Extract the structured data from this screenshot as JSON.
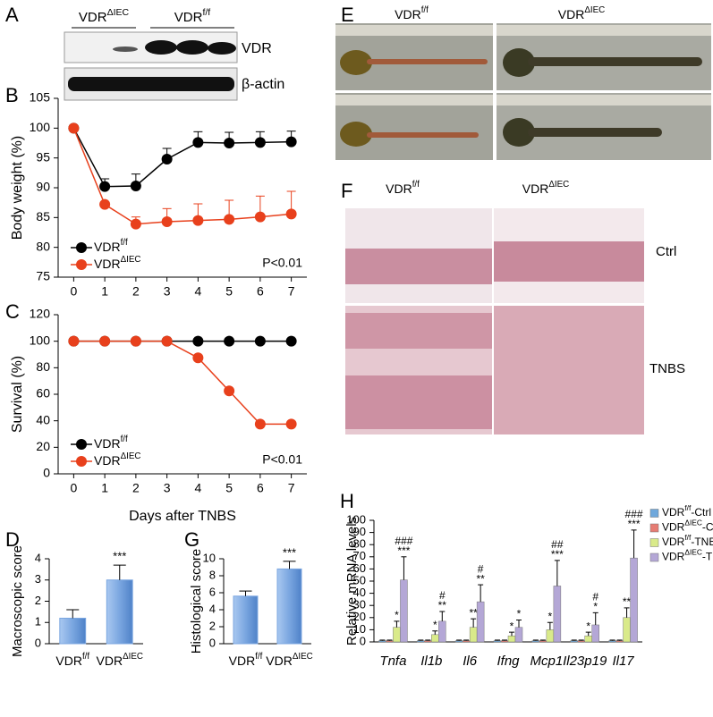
{
  "figure_a": {
    "panel": "A",
    "columns": [
      "VDRΔIEC",
      "VDRf/f"
    ],
    "rows": [
      "VDR",
      "β-actin"
    ]
  },
  "figure_e": {
    "panel": "E",
    "columns": [
      "VDRf/f",
      "VDRΔIEC"
    ]
  },
  "figure_f": {
    "panel": "F",
    "columns": [
      "VDRf/f",
      "VDRΔIEC"
    ],
    "rows": [
      "Ctrl",
      "TNBS"
    ]
  },
  "chart_data": [
    {
      "type": "line",
      "panel": "B",
      "y_label": "Body weight (%)",
      "x": [
        0,
        1,
        2,
        3,
        4,
        5,
        6,
        7
      ],
      "xlim": [
        -0.5,
        7.5
      ],
      "xticks": [
        0,
        1,
        2,
        3,
        4,
        5,
        6,
        7
      ],
      "ylim": [
        75,
        105
      ],
      "yticks": [
        75,
        80,
        85,
        90,
        95,
        100,
        105
      ],
      "legend": "lower left",
      "annotation": "P<0.01",
      "series": [
        {
          "name": "VDRf/f",
          "color": "#000000",
          "values": [
            100,
            90.2,
            90.3,
            94.8,
            97.6,
            97.5,
            97.6,
            97.7
          ],
          "errors": [
            0,
            1.3,
            2,
            1.8,
            1.8,
            1.8,
            1.8,
            1.8
          ]
        },
        {
          "name": "VDRΔIEC",
          "color": "#e8401c",
          "values": [
            100,
            87.2,
            83.9,
            84.3,
            84.5,
            84.7,
            85.1,
            85.6
          ],
          "errors": [
            0,
            0,
            1.2,
            2.2,
            2.8,
            3.2,
            3.5,
            3.8
          ]
        }
      ]
    },
    {
      "type": "line",
      "panel": "C",
      "y_label": "Survival (%)",
      "x_label": "Days after TNBS",
      "x": [
        0,
        1,
        2,
        3,
        4,
        5,
        6,
        7
      ],
      "xlim": [
        -0.5,
        7.5
      ],
      "xticks": [
        0,
        1,
        2,
        3,
        4,
        5,
        6,
        7
      ],
      "ylim": [
        0,
        120
      ],
      "yticks": [
        0,
        20,
        40,
        60,
        80,
        100,
        120
      ],
      "legend": "lower left",
      "annotation": "P<0.01",
      "series": [
        {
          "name": "VDRf/f",
          "color": "#000000",
          "values": [
            100,
            100,
            100,
            100,
            100,
            100,
            100,
            100
          ]
        },
        {
          "name": "VDRΔIEC",
          "color": "#e8401c",
          "values": [
            100,
            100,
            100,
            100,
            87.5,
            62.5,
            37.5,
            37.5
          ]
        }
      ]
    },
    {
      "type": "bar",
      "panel": "D",
      "y_label": "Macroscopic score",
      "color": "#7aa6e0",
      "categories": [
        "VDRf/f",
        "VDRΔIEC"
      ],
      "values": [
        1.2,
        3.0
      ],
      "errors": [
        0.4,
        0.7
      ],
      "annotations": [
        null,
        "***"
      ],
      "ylim": [
        0,
        4
      ],
      "yticks": [
        0,
        1,
        2,
        3,
        4
      ]
    },
    {
      "type": "bar",
      "panel": "G",
      "y_label": "Histological score",
      "color": "#7aa6e0",
      "categories": [
        "VDRf/f",
        "VDRΔIEC"
      ],
      "values": [
        5.6,
        8.8
      ],
      "errors": [
        0.6,
        0.9
      ],
      "annotations": [
        null,
        "***"
      ],
      "ylim": [
        0,
        10
      ],
      "yticks": [
        0,
        2,
        4,
        6,
        8,
        10
      ]
    },
    {
      "type": "grouped_bar",
      "panel": "H",
      "y_label": "Relative mRNA levels",
      "categories": [
        "Tnfa",
        "Il1b",
        "Il6",
        "Ifng",
        "Mcp1",
        "Il23p19",
        "Il17"
      ],
      "ylim": [
        0,
        100
      ],
      "yticks": [
        0,
        10,
        20,
        30,
        40,
        50,
        60,
        70,
        80,
        90,
        100
      ],
      "legend": "right",
      "series": [
        {
          "name": "VDRf/f-Ctrl",
          "color": "#6fa8dc",
          "values": [
            1,
            1,
            1,
            1,
            1,
            1,
            1
          ],
          "errors": [
            0.5,
            0.5,
            0.5,
            0.5,
            0.5,
            0.5,
            0.5
          ]
        },
        {
          "name": "VDRΔIEC-Ctrl",
          "color": "#e67c73",
          "values": [
            1,
            1,
            1,
            1,
            1,
            1,
            1
          ],
          "errors": [
            0.5,
            0.5,
            0.5,
            0.5,
            0.5,
            0.5,
            0.5
          ]
        },
        {
          "name": "VDRf/f-TNBS",
          "color": "#d9ea8a",
          "values": [
            12,
            6,
            12,
            5,
            10,
            5,
            20
          ],
          "errors": [
            5,
            3,
            7,
            3,
            6,
            3,
            8
          ],
          "annotations": [
            "*",
            "*",
            "**",
            "*",
            "*",
            "*",
            "**"
          ]
        },
        {
          "name": "VDRΔIEC-TNBS",
          "color": "#b4a7d6",
          "values": [
            51,
            17,
            33,
            12,
            46,
            14,
            69
          ],
          "errors": [
            19,
            8,
            14,
            6,
            21,
            10,
            23
          ],
          "annotations": [
            [
              "###",
              "***"
            ],
            [
              "#",
              "**"
            ],
            [
              "#",
              "**"
            ],
            [
              "*"
            ],
            [
              "##",
              "***"
            ],
            [
              "#",
              "*"
            ],
            [
              "###",
              "***"
            ]
          ]
        }
      ]
    }
  ]
}
